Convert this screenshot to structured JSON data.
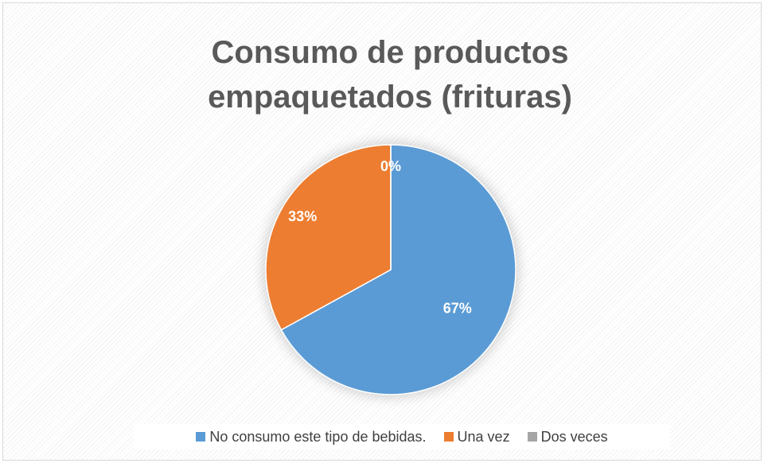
{
  "chart_data": {
    "type": "pie",
    "title": "Consumo de productos empaquetados (frituras)",
    "categories": [
      "No consumo este tipo de bebidas.",
      "Una vez",
      "Dos veces"
    ],
    "values": [
      67,
      33,
      0
    ],
    "value_labels": [
      "67%",
      "33%",
      "0%"
    ],
    "colors": [
      "#5b9bd5",
      "#ed7d31",
      "#a5a5a5"
    ],
    "legend": "bottom"
  }
}
